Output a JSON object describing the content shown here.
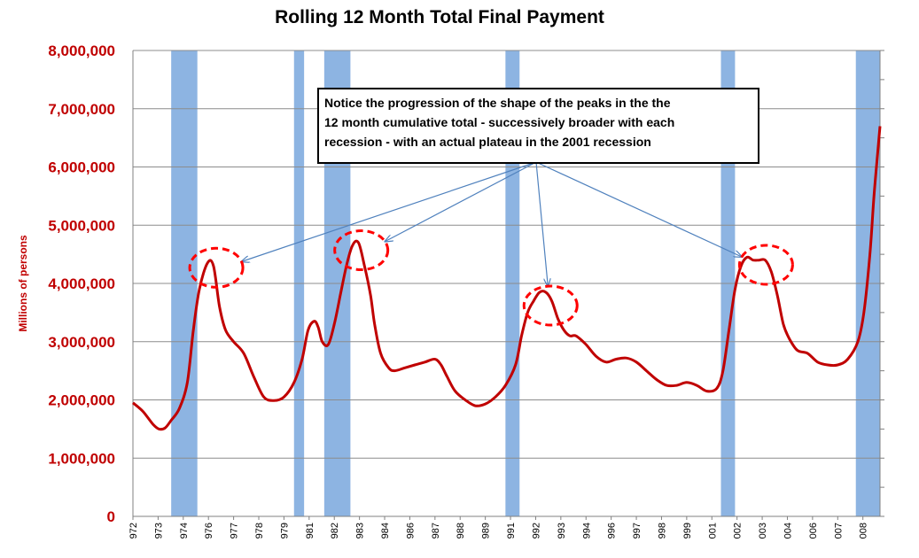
{
  "chart_data": {
    "type": "line",
    "title": "Rolling 12 Month Total Final Payment",
    "ylabel": "Millions of persons",
    "xlabel": "",
    "ylim": [
      0,
      8000000
    ],
    "y_ticks": [
      "0",
      "1,000,000",
      "2,000,000",
      "3,000,000",
      "4,000,000",
      "5,000,000",
      "6,000,000",
      "7,000,000",
      "8,000,000"
    ],
    "y_tick_values": [
      0,
      1000000,
      2000000,
      3000000,
      4000000,
      5000000,
      6000000,
      7000000,
      8000000
    ],
    "x_range": [
      1972,
      2009.1
    ],
    "x_ticks": [
      "972",
      "973",
      "974",
      "976",
      "977",
      "978",
      "979",
      "981",
      "982",
      "983",
      "984",
      "986",
      "987",
      "988",
      "989",
      "991",
      "992",
      "993",
      "994",
      "996",
      "997",
      "998",
      "999",
      "001",
      "002",
      "003",
      "004",
      "006",
      "007",
      "008"
    ],
    "x_tick_positions": [
      1972.0,
      1973.25,
      1974.5,
      1975.75,
      1977.0,
      1978.25,
      1979.5,
      1980.75,
      1982.0,
      1983.25,
      1984.5,
      1985.75,
      1987.0,
      1988.25,
      1989.5,
      1990.75,
      1992.0,
      1993.25,
      1994.5,
      1995.75,
      1997.0,
      1998.25,
      1999.5,
      2000.75,
      2002.0,
      2003.25,
      2004.5,
      2005.75,
      2007.0,
      2008.25
    ],
    "recessions": [
      [
        1973.9,
        1975.2
      ],
      [
        1980.0,
        1980.5
      ],
      [
        1981.5,
        1982.8
      ],
      [
        1990.5,
        1991.2
      ],
      [
        2001.2,
        2001.9
      ],
      [
        2007.9,
        2009.3
      ]
    ],
    "recession_color": "#8DB4E2",
    "line_color": "#C00000",
    "series": [
      {
        "name": "Rolling 12 Month Total Final Payment",
        "x": [
          1972.0,
          1972.5,
          1973.0,
          1973.3,
          1973.6,
          1973.9,
          1974.3,
          1974.7,
          1975.0,
          1975.3,
          1975.7,
          1976.0,
          1976.3,
          1976.6,
          1977.0,
          1977.5,
          1978.0,
          1978.5,
          1979.0,
          1979.5,
          1980.0,
          1980.4,
          1980.7,
          1981.0,
          1981.2,
          1981.4,
          1981.7,
          1982.0,
          1982.3,
          1982.6,
          1982.9,
          1983.2,
          1983.5,
          1983.8,
          1984.0,
          1984.3,
          1984.7,
          1985.0,
          1985.5,
          1986.0,
          1986.5,
          1987.0,
          1987.3,
          1987.6,
          1988.0,
          1988.5,
          1989.0,
          1989.5,
          1990.0,
          1990.5,
          1991.0,
          1991.3,
          1991.6,
          1991.9,
          1992.2,
          1992.5,
          1992.8,
          1993.1,
          1993.4,
          1993.7,
          1994.0,
          1994.5,
          1995.0,
          1995.5,
          1996.0,
          1996.5,
          1997.0,
          1997.5,
          1998.0,
          1998.5,
          1999.0,
          1999.5,
          2000.0,
          2000.5,
          2001.0,
          2001.3,
          2001.6,
          2001.9,
          2002.2,
          2002.5,
          2002.8,
          2003.1,
          2003.4,
          2003.7,
          2004.0,
          2004.3,
          2004.6,
          2005.0,
          2005.5,
          2006.0,
          2006.5,
          2007.0,
          2007.5,
          2008.0,
          2008.3,
          2008.6,
          2008.8,
          2009.0,
          2009.1
        ],
        "values": [
          1950000,
          1800000,
          1580000,
          1500000,
          1520000,
          1650000,
          1850000,
          2300000,
          3200000,
          3900000,
          4350000,
          4300000,
          3600000,
          3200000,
          3000000,
          2800000,
          2400000,
          2050000,
          1990000,
          2050000,
          2300000,
          2700000,
          3200000,
          3350000,
          3250000,
          3000000,
          2950000,
          3300000,
          3800000,
          4300000,
          4650000,
          4700000,
          4300000,
          3800000,
          3300000,
          2800000,
          2550000,
          2500000,
          2550000,
          2600000,
          2650000,
          2700000,
          2600000,
          2400000,
          2150000,
          2000000,
          1900000,
          1930000,
          2050000,
          2250000,
          2600000,
          3100000,
          3500000,
          3700000,
          3850000,
          3850000,
          3700000,
          3400000,
          3200000,
          3100000,
          3100000,
          2950000,
          2750000,
          2650000,
          2700000,
          2720000,
          2650000,
          2500000,
          2350000,
          2250000,
          2250000,
          2300000,
          2250000,
          2150000,
          2200000,
          2500000,
          3200000,
          3900000,
          4300000,
          4450000,
          4400000,
          4400000,
          4400000,
          4200000,
          3800000,
          3300000,
          3050000,
          2850000,
          2800000,
          2650000,
          2600000,
          2600000,
          2700000,
          3000000,
          3500000,
          4500000,
          5500000,
          6300000,
          6700000
        ]
      }
    ],
    "annotation": {
      "lines": [
        "Notice the progression of the shape of the peaks in the the",
        "12 month cumulative total - successively broader with each",
        "recession - with an actual plateau in the 2001 recession"
      ],
      "highlighted_peaks": [
        {
          "x": 1975.7,
          "y": 4300000
        },
        {
          "x": 1982.9,
          "y": 4600000
        },
        {
          "x": 1992.3,
          "y": 3650000
        },
        {
          "x": 2003.0,
          "y": 4350000
        }
      ]
    }
  }
}
